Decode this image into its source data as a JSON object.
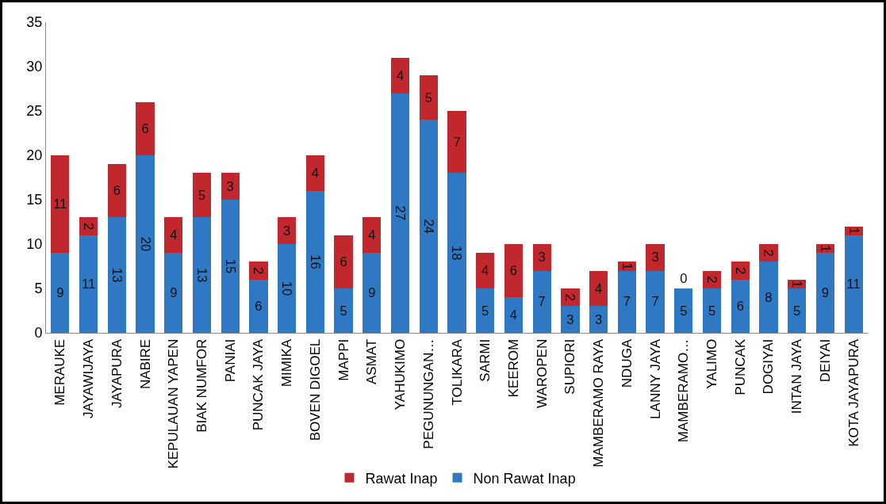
{
  "chart_data": {
    "type": "bar",
    "stacked": true,
    "data_labels": true,
    "legend": "bottom",
    "grid": false,
    "categories": [
      "MERAUKE",
      "JAYAWIJAYA",
      "JAYAPURA",
      "NABIRE",
      "KEPULAUAN YAPEN",
      "BIAK NUMFOR",
      "PANIAI",
      "PUNCAK JAYA",
      "MIMIKA",
      "BOVEN DIGOEL",
      "MAPPI",
      "ASMAT",
      "YAHUKIMO",
      "PEGUNUNGAN…",
      "TOLIKARA",
      "SARMI",
      "KEEROM",
      "WAROPEN",
      "SUPIORI",
      "MAMBERAMO RAYA",
      "NDUGA",
      "LANNY JAYA",
      "MAMBERAMO…",
      "YALIMO",
      "PUNCAK",
      "DOGIYAI",
      "INTAN JAYA",
      "DEIYAI",
      "KOTA JAYAPURA"
    ],
    "series": [
      {
        "name": "Non Rawat Inap",
        "color": "#2f78c4",
        "values": [
          9,
          11,
          13,
          20,
          9,
          13,
          15,
          6,
          10,
          16,
          5,
          9,
          27,
          24,
          18,
          5,
          4,
          7,
          3,
          3,
          7,
          7,
          5,
          5,
          6,
          8,
          5,
          9,
          11
        ]
      },
      {
        "name": "Rawat Inap",
        "color": "#c0282d",
        "values": [
          11,
          2,
          6,
          6,
          4,
          5,
          3,
          2,
          3,
          4,
          6,
          4,
          4,
          5,
          7,
          4,
          6,
          3,
          2,
          4,
          1,
          3,
          0,
          2,
          2,
          2,
          1,
          1,
          1
        ]
      }
    ],
    "ylim": [
      0,
      35
    ],
    "yticks": [
      0,
      5,
      10,
      15,
      20,
      25,
      30,
      35
    ]
  }
}
